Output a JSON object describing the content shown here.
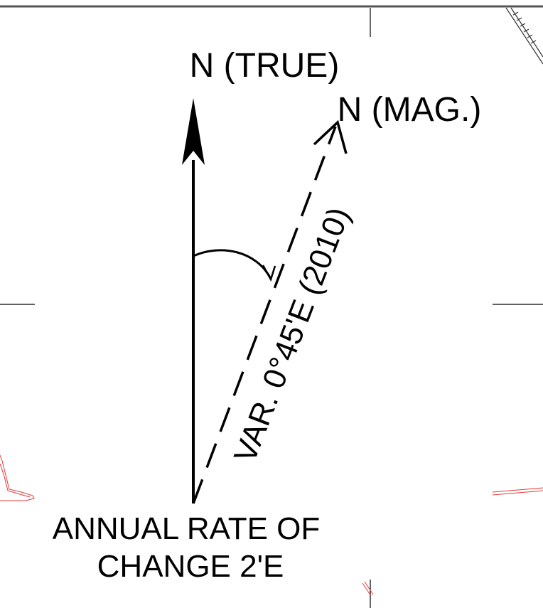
{
  "labels": {
    "true_north": "N (TRUE)",
    "magnetic_north": "N (MAG.)",
    "variation": "VAR. 0°45'E (2010)",
    "annual_rate_line1": "ANNUAL RATE OF",
    "annual_rate_line2": "CHANGE 2'E"
  },
  "colors": {
    "ink": "#000000",
    "background": "#ffffff",
    "frame": "#555555",
    "red_linework": "#e03a3a"
  }
}
